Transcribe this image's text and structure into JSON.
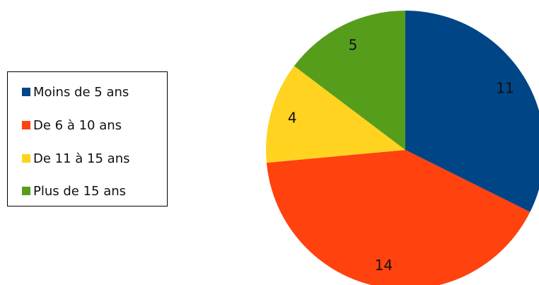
{
  "chart_data": {
    "type": "pie",
    "categories": [
      "Moins de 5 ans",
      "De 6 à 10 ans",
      "De 11 à 15 ans",
      "Plus de 15 ans"
    ],
    "values": [
      11,
      14,
      4,
      5
    ],
    "data_labels": [
      "11",
      "14",
      "4",
      "5"
    ],
    "colors": [
      "#004586",
      "#ff420e",
      "#ffd320",
      "#579d1c"
    ],
    "legend_position": "left",
    "start_angle_deg": 0,
    "direction": "clockwise"
  }
}
